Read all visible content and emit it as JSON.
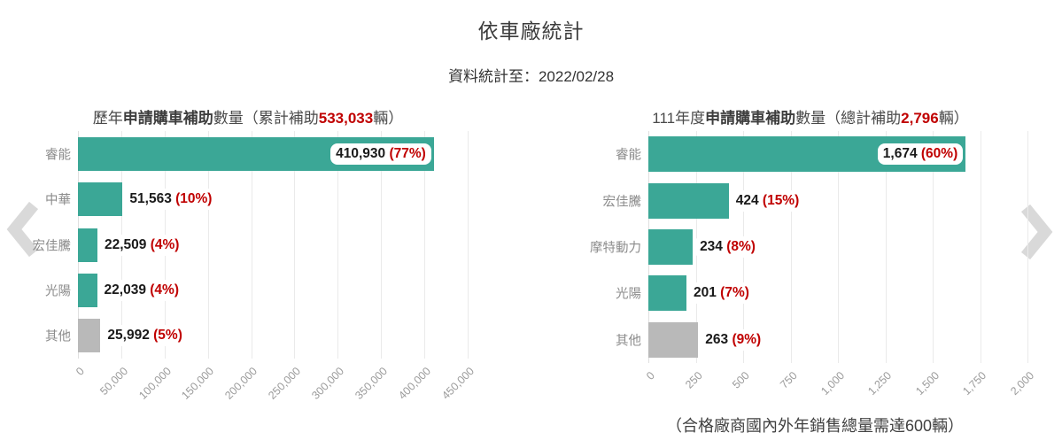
{
  "page": {
    "title": "依車廠統計",
    "subtitle": "資料統計至：2022/02/28"
  },
  "colors": {
    "bar_teal": "#3BA796",
    "bar_gray": "#B9B9B9",
    "percent_red": "#C00000",
    "value_text": "#1A1A1A",
    "category_text": "#8C8C8C",
    "tick_text": "#9B9B9B",
    "gridline": "#EAEAEA",
    "arrow_gray": "#D9D9D9"
  },
  "carousel": {
    "prev_icon": "chevron-left",
    "next_icon": "chevron-right"
  },
  "chart_data": [
    {
      "type": "bar",
      "orientation": "horizontal",
      "title": {
        "prefix": "歷年",
        "bold": "申請購車補助",
        "mid": "數量（累計補助",
        "highlight": "533,033",
        "suffix": "輛）"
      },
      "categories": [
        "睿能",
        "中華",
        "宏佳騰",
        "光陽",
        "其他"
      ],
      "values": [
        410930,
        51563,
        22509,
        22039,
        25992
      ],
      "value_labels": [
        "410,930",
        "51,563",
        "22,509",
        "22,039",
        "25,992"
      ],
      "pct_labels": [
        "(77%)",
        "(10%)",
        "(4%)",
        "(4%)",
        "(5%)"
      ],
      "bar_colors": [
        "teal",
        "teal",
        "teal",
        "teal",
        "gray"
      ],
      "label_inside": [
        true,
        false,
        false,
        false,
        false
      ],
      "xlim": [
        0,
        450000
      ],
      "tick_values": [
        0,
        50000,
        100000,
        150000,
        200000,
        250000,
        300000,
        350000,
        400000,
        450000
      ],
      "x_ticks": [
        "0",
        "50,000",
        "100,000",
        "150,000",
        "200,000",
        "250,000",
        "300,000",
        "350,000",
        "400,000",
        "450,000"
      ],
      "grid": true,
      "legend": "none"
    },
    {
      "type": "bar",
      "orientation": "horizontal",
      "title": {
        "prefix": "111年度",
        "bold": "申請購車補助",
        "mid": "數量（總計補助",
        "highlight": "2,796",
        "suffix": "輛）"
      },
      "categories": [
        "睿能",
        "宏佳騰",
        "摩特動力",
        "光陽",
        "其他"
      ],
      "values": [
        1674,
        424,
        234,
        201,
        263
      ],
      "value_labels": [
        "1,674",
        "424",
        "234",
        "201",
        "263"
      ],
      "pct_labels": [
        "(60%)",
        "(15%)",
        "(8%)",
        "(7%)",
        "(9%)"
      ],
      "bar_colors": [
        "teal",
        "teal",
        "teal",
        "teal",
        "gray"
      ],
      "label_inside": [
        true,
        false,
        false,
        false,
        false
      ],
      "xlim": [
        0,
        2000
      ],
      "tick_values": [
        0,
        250,
        500,
        750,
        1000,
        1250,
        1500,
        1750,
        2000
      ],
      "x_ticks": [
        "0",
        "250",
        "500",
        "750",
        "1,000",
        "1,250",
        "1,500",
        "1,750",
        "2,000"
      ],
      "grid": true,
      "legend": "none",
      "note": "（合格廠商國內外年銷售總量需達600輛）"
    }
  ]
}
